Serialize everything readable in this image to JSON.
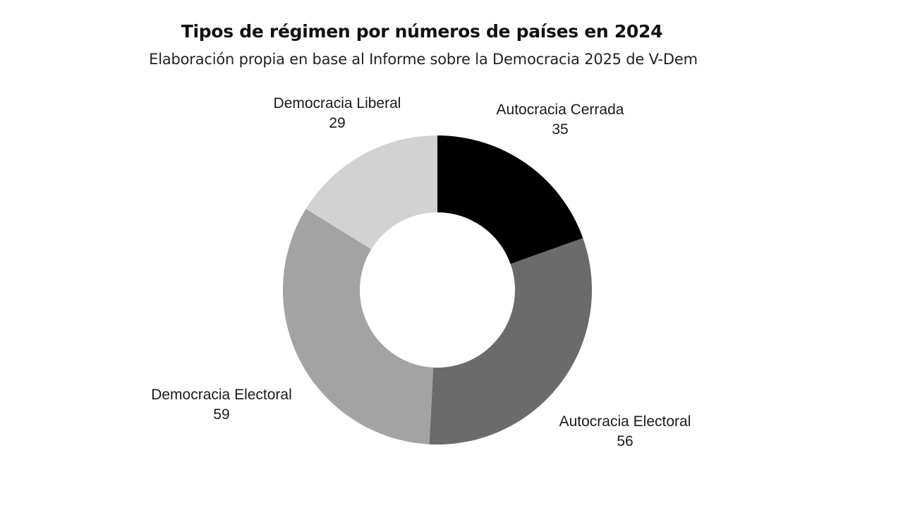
{
  "chart_data": {
    "type": "pie",
    "title": "Tipos de régimen por números de países en 2024",
    "subtitle": "Elaboración propia en base al Informe sobre la Democracia 2025 de V-Dem",
    "donut": true,
    "slices": [
      {
        "label": "Autocracia Cerrada",
        "value": 35,
        "color": "#000000"
      },
      {
        "label": "Autocracia Electoral",
        "value": 56,
        "color": "#6b6b6b"
      },
      {
        "label": "Democracia Electoral",
        "value": 59,
        "color": "#a3a3a3"
      },
      {
        "label": "Democracia Liberal",
        "value": 29,
        "color": "#d2d2d2"
      }
    ]
  }
}
